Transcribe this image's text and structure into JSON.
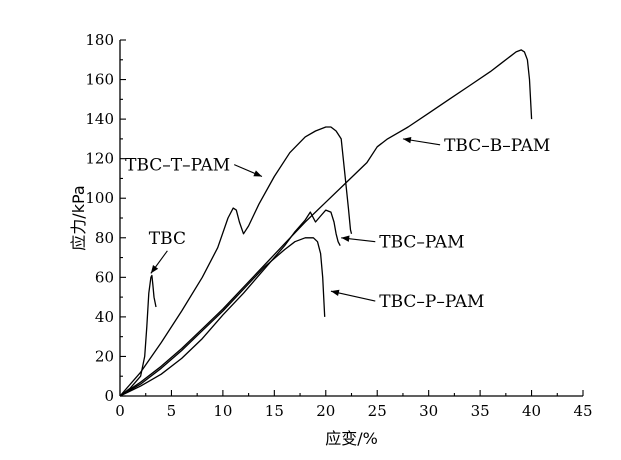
{
  "chart_data": {
    "type": "line",
    "title": "",
    "xlabel": "应变/%",
    "ylabel": "应力/kPa",
    "xlim": [
      0,
      45
    ],
    "ylim": [
      0,
      180
    ],
    "xticks": [
      0,
      5,
      10,
      15,
      20,
      25,
      30,
      35,
      40,
      45
    ],
    "yticks": [
      0,
      20,
      40,
      60,
      80,
      100,
      120,
      140,
      160,
      180
    ],
    "grid": false,
    "legend": "none",
    "series": [
      {
        "name": "TBC",
        "points": [
          [
            0,
            0
          ],
          [
            1,
            4
          ],
          [
            2,
            10
          ],
          [
            2.4,
            20
          ],
          [
            2.6,
            35
          ],
          [
            2.8,
            52
          ],
          [
            3,
            60
          ],
          [
            3.1,
            61
          ],
          [
            3.2,
            56
          ],
          [
            3.3,
            50
          ],
          [
            3.5,
            45
          ]
        ],
        "label_x": 2.8,
        "label_y": 80,
        "arrow_to": [
          3.0,
          62
        ]
      },
      {
        "name": "TBC–T–PAM",
        "points": [
          [
            0,
            0
          ],
          [
            2,
            12
          ],
          [
            4,
            27
          ],
          [
            6,
            43
          ],
          [
            8,
            60
          ],
          [
            9.5,
            75
          ],
          [
            10.5,
            90
          ],
          [
            11,
            95
          ],
          [
            11.3,
            94
          ],
          [
            11.6,
            88
          ],
          [
            12,
            82
          ],
          [
            12.5,
            86
          ],
          [
            13.5,
            97
          ],
          [
            15,
            111
          ],
          [
            16.5,
            123
          ],
          [
            18,
            131
          ],
          [
            19,
            134
          ],
          [
            20,
            136
          ],
          [
            20.5,
            136
          ],
          [
            21,
            134
          ],
          [
            21.5,
            130
          ],
          [
            21.8,
            115
          ],
          [
            22.2,
            95
          ],
          [
            22.4,
            84
          ],
          [
            22.5,
            82
          ]
        ],
        "label_x": 0.5,
        "label_y": 117,
        "arrow_to": [
          13.8,
          111
        ]
      },
      {
        "name": "TBC–PAM",
        "points": [
          [
            0,
            0
          ],
          [
            2,
            5
          ],
          [
            4,
            11
          ],
          [
            6,
            19
          ],
          [
            8,
            29
          ],
          [
            10,
            41
          ],
          [
            12,
            52
          ],
          [
            14,
            64
          ],
          [
            16,
            76
          ],
          [
            17,
            83
          ],
          [
            18,
            89
          ],
          [
            18.5,
            93
          ],
          [
            19,
            88
          ],
          [
            19.5,
            91
          ],
          [
            20,
            94
          ],
          [
            20.5,
            93
          ],
          [
            20.8,
            88
          ],
          [
            21,
            82
          ],
          [
            21.2,
            78
          ],
          [
            21.4,
            76
          ]
        ],
        "label_x": 25.2,
        "label_y": 78,
        "arrow_to": [
          21.5,
          80
        ]
      },
      {
        "name": "TBC–B–PAM",
        "points": [
          [
            0,
            0
          ],
          [
            2,
            7
          ],
          [
            4,
            15
          ],
          [
            6,
            24
          ],
          [
            8,
            34
          ],
          [
            10,
            44
          ],
          [
            12,
            55
          ],
          [
            14,
            66
          ],
          [
            16,
            77
          ],
          [
            18,
            88
          ],
          [
            20,
            98
          ],
          [
            22,
            108
          ],
          [
            24,
            118
          ],
          [
            25,
            126
          ],
          [
            26,
            130
          ],
          [
            28,
            136
          ],
          [
            30,
            143
          ],
          [
            32,
            150
          ],
          [
            34,
            157
          ],
          [
            36,
            164
          ],
          [
            37,
            168
          ],
          [
            38,
            172
          ],
          [
            38.5,
            174
          ],
          [
            39,
            175
          ],
          [
            39.3,
            174
          ],
          [
            39.6,
            170
          ],
          [
            39.8,
            160
          ],
          [
            40,
            140
          ]
        ],
        "label_x": 31.5,
        "label_y": 127,
        "arrow_to": [
          27.5,
          130
        ]
      },
      {
        "name": "TBC–P–PAM",
        "points": [
          [
            0,
            0
          ],
          [
            2,
            6
          ],
          [
            4,
            14
          ],
          [
            6,
            23
          ],
          [
            8,
            33
          ],
          [
            10,
            43
          ],
          [
            12,
            54
          ],
          [
            14,
            65
          ],
          [
            16,
            74
          ],
          [
            17,
            78
          ],
          [
            18,
            80
          ],
          [
            18.8,
            80
          ],
          [
            19.2,
            78
          ],
          [
            19.5,
            72
          ],
          [
            19.7,
            60
          ],
          [
            19.8,
            50
          ],
          [
            19.9,
            40
          ]
        ],
        "label_x": 25.2,
        "label_y": 48,
        "arrow_to": [
          20.5,
          53
        ]
      }
    ]
  }
}
